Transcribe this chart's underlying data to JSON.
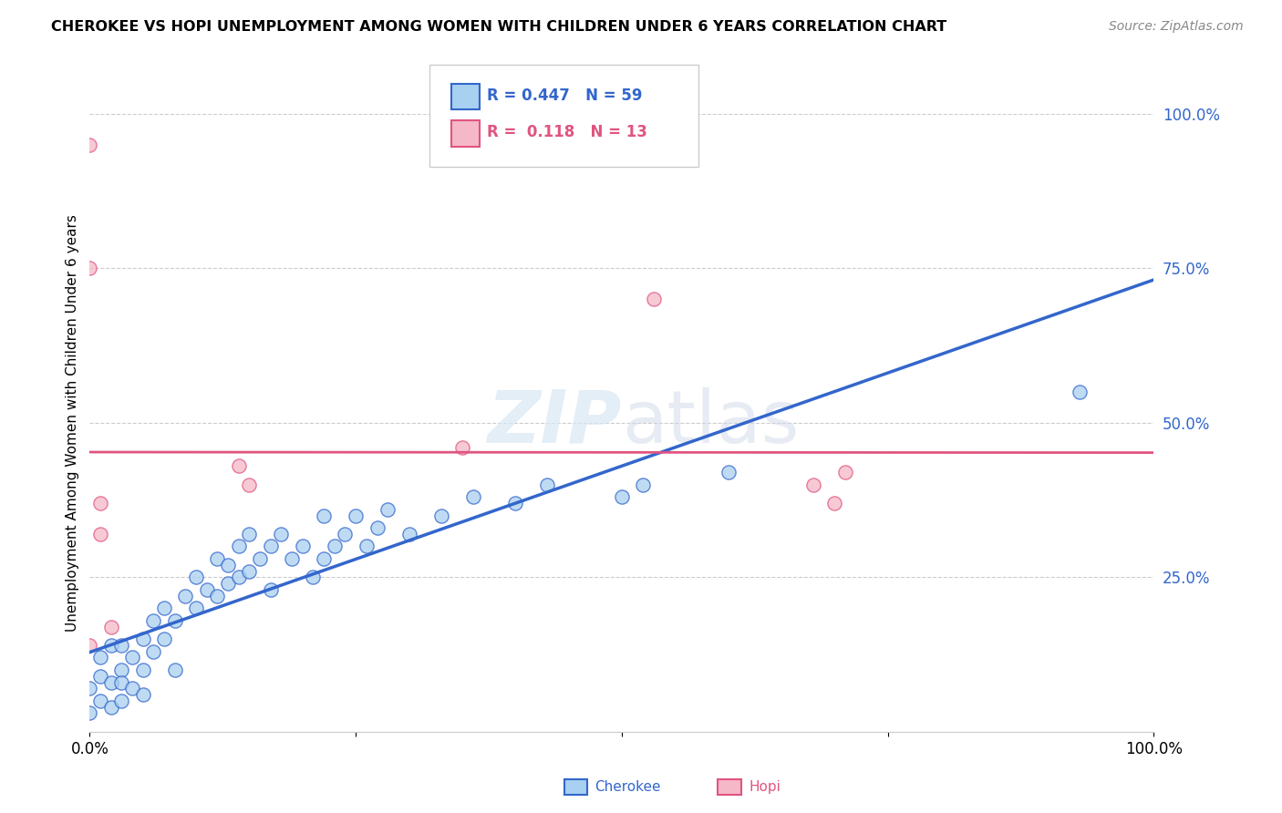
{
  "title": "CHEROKEE VS HOPI UNEMPLOYMENT AMONG WOMEN WITH CHILDREN UNDER 6 YEARS CORRELATION CHART",
  "source": "Source: ZipAtlas.com",
  "ylabel": "Unemployment Among Women with Children Under 6 years",
  "watermark": "ZIPatlas",
  "cherokee_R": "0.447",
  "cherokee_N": "59",
  "hopi_R": "0.118",
  "hopi_N": "13",
  "cherokee_color": "#a8d0f0",
  "hopi_color": "#f5b8c8",
  "cherokee_line_color": "#3366cc",
  "hopi_line_color": "#e05580",
  "background_color": "#ffffff",
  "xlim": [
    0,
    1
  ],
  "ylim": [
    0,
    1
  ],
  "yticks": [
    0.25,
    0.5,
    0.75,
    1.0
  ],
  "ytick_labels": [
    "25.0%",
    "50.0%",
    "75.0%",
    "100.0%"
  ],
  "cherokee_x": [
    0.0,
    0.0,
    0.01,
    0.01,
    0.01,
    0.02,
    0.02,
    0.02,
    0.03,
    0.03,
    0.03,
    0.03,
    0.04,
    0.04,
    0.05,
    0.05,
    0.05,
    0.06,
    0.06,
    0.07,
    0.07,
    0.08,
    0.08,
    0.09,
    0.1,
    0.1,
    0.11,
    0.12,
    0.12,
    0.13,
    0.13,
    0.14,
    0.14,
    0.15,
    0.15,
    0.16,
    0.17,
    0.17,
    0.18,
    0.19,
    0.2,
    0.21,
    0.22,
    0.22,
    0.23,
    0.24,
    0.25,
    0.26,
    0.27,
    0.28,
    0.3,
    0.33,
    0.36,
    0.4,
    0.43,
    0.5,
    0.52,
    0.6,
    0.93
  ],
  "cherokee_y": [
    0.03,
    0.07,
    0.05,
    0.09,
    0.12,
    0.04,
    0.08,
    0.14,
    0.05,
    0.1,
    0.14,
    0.08,
    0.07,
    0.12,
    0.1,
    0.15,
    0.06,
    0.13,
    0.18,
    0.15,
    0.2,
    0.1,
    0.18,
    0.22,
    0.25,
    0.2,
    0.23,
    0.28,
    0.22,
    0.27,
    0.24,
    0.25,
    0.3,
    0.26,
    0.32,
    0.28,
    0.3,
    0.23,
    0.32,
    0.28,
    0.3,
    0.25,
    0.35,
    0.28,
    0.3,
    0.32,
    0.35,
    0.3,
    0.33,
    0.36,
    0.32,
    0.35,
    0.38,
    0.37,
    0.4,
    0.38,
    0.4,
    0.42,
    0.55
  ],
  "hopi_x": [
    0.0,
    0.0,
    0.0,
    0.01,
    0.01,
    0.02,
    0.14,
    0.15,
    0.53,
    0.68,
    0.7,
    0.71,
    0.35
  ],
  "hopi_y": [
    0.95,
    0.75,
    0.14,
    0.37,
    0.32,
    0.17,
    0.43,
    0.4,
    0.7,
    0.4,
    0.37,
    0.42,
    0.46
  ]
}
